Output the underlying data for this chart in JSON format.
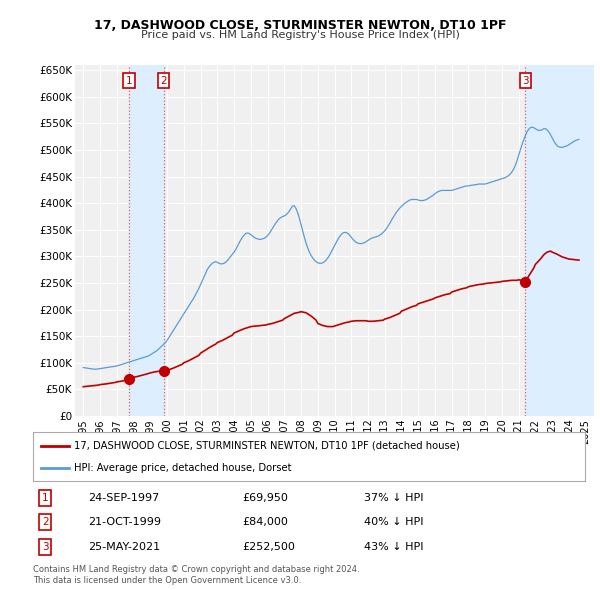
{
  "title": "17, DASHWOOD CLOSE, STURMINSTER NEWTON, DT10 1PF",
  "subtitle": "Price paid vs. HM Land Registry's House Price Index (HPI)",
  "legend_line1": "17, DASHWOOD CLOSE, STURMINSTER NEWTON, DT10 1PF (detached house)",
  "legend_line2": "HPI: Average price, detached house, Dorset",
  "footer1": "Contains HM Land Registry data © Crown copyright and database right 2024.",
  "footer2": "This data is licensed under the Open Government Licence v3.0.",
  "sales": [
    {
      "num": 1,
      "date": "24-SEP-1997",
      "price": 69950,
      "x": 1997.73,
      "pct": "37% ↓ HPI"
    },
    {
      "num": 2,
      "date": "21-OCT-1999",
      "price": 84000,
      "x": 1999.8,
      "pct": "40% ↓ HPI"
    },
    {
      "num": 3,
      "date": "25-MAY-2021",
      "price": 252500,
      "x": 2021.4,
      "pct": "43% ↓ HPI"
    }
  ],
  "hpi_color": "#5b9bd5",
  "price_color": "#c00000",
  "sale_dot_color": "#c00000",
  "vline_color": "#e06060",
  "shade_color": "#ddeeff",
  "background_color": "#ffffff",
  "plot_bg": "#f0f0f0",
  "ylim": [
    0,
    660000
  ],
  "xlim": [
    1994.5,
    2025.5
  ],
  "yticks": [
    0,
    50000,
    100000,
    150000,
    200000,
    250000,
    300000,
    350000,
    400000,
    450000,
    500000,
    550000,
    600000,
    650000
  ],
  "ytick_labels": [
    "£0",
    "£50K",
    "£100K",
    "£150K",
    "£200K",
    "£250K",
    "£300K",
    "£350K",
    "£400K",
    "£450K",
    "£500K",
    "£550K",
    "£600K",
    "£650K"
  ],
  "xticks": [
    1995,
    1996,
    1997,
    1998,
    1999,
    2000,
    2001,
    2002,
    2003,
    2004,
    2005,
    2006,
    2007,
    2008,
    2009,
    2010,
    2011,
    2012,
    2013,
    2014,
    2015,
    2016,
    2017,
    2018,
    2019,
    2020,
    2021,
    2022,
    2023,
    2024,
    2025
  ],
  "hpi_data": [
    [
      1995.0,
      91000
    ],
    [
      1995.1,
      90500
    ],
    [
      1995.2,
      90000
    ],
    [
      1995.3,
      89500
    ],
    [
      1995.4,
      89000
    ],
    [
      1995.5,
      88500
    ],
    [
      1995.6,
      88000
    ],
    [
      1995.7,
      88000
    ],
    [
      1995.8,
      88000
    ],
    [
      1995.9,
      88500
    ],
    [
      1996.0,
      89000
    ],
    [
      1996.1,
      89500
    ],
    [
      1996.2,
      90000
    ],
    [
      1996.3,
      90500
    ],
    [
      1996.4,
      91000
    ],
    [
      1996.5,
      91500
    ],
    [
      1996.6,
      92000
    ],
    [
      1996.7,
      92500
    ],
    [
      1996.8,
      93000
    ],
    [
      1996.9,
      93500
    ],
    [
      1997.0,
      94000
    ],
    [
      1997.1,
      95000
    ],
    [
      1997.2,
      96000
    ],
    [
      1997.3,
      97000
    ],
    [
      1997.4,
      98000
    ],
    [
      1997.5,
      99000
    ],
    [
      1997.6,
      100000
    ],
    [
      1997.7,
      101000
    ],
    [
      1997.8,
      102000
    ],
    [
      1997.9,
      103000
    ],
    [
      1998.0,
      104000
    ],
    [
      1998.1,
      105000
    ],
    [
      1998.2,
      106000
    ],
    [
      1998.3,
      107000
    ],
    [
      1998.4,
      108000
    ],
    [
      1998.5,
      109000
    ],
    [
      1998.6,
      110000
    ],
    [
      1998.7,
      111000
    ],
    [
      1998.8,
      112000
    ],
    [
      1998.9,
      113000
    ],
    [
      1999.0,
      115000
    ],
    [
      1999.1,
      117000
    ],
    [
      1999.2,
      119000
    ],
    [
      1999.3,
      121000
    ],
    [
      1999.4,
      123000
    ],
    [
      1999.5,
      126000
    ],
    [
      1999.6,
      129000
    ],
    [
      1999.7,
      132000
    ],
    [
      1999.8,
      135000
    ],
    [
      1999.9,
      138000
    ],
    [
      2000.0,
      142000
    ],
    [
      2000.1,
      147000
    ],
    [
      2000.2,
      152000
    ],
    [
      2000.3,
      157000
    ],
    [
      2000.4,
      162000
    ],
    [
      2000.5,
      167000
    ],
    [
      2000.6,
      172000
    ],
    [
      2000.7,
      177000
    ],
    [
      2000.8,
      182000
    ],
    [
      2000.9,
      187000
    ],
    [
      2001.0,
      192000
    ],
    [
      2001.1,
      197000
    ],
    [
      2001.2,
      202000
    ],
    [
      2001.3,
      207000
    ],
    [
      2001.4,
      212000
    ],
    [
      2001.5,
      217000
    ],
    [
      2001.6,
      222000
    ],
    [
      2001.7,
      228000
    ],
    [
      2001.8,
      234000
    ],
    [
      2001.9,
      240000
    ],
    [
      2002.0,
      247000
    ],
    [
      2002.1,
      254000
    ],
    [
      2002.2,
      261000
    ],
    [
      2002.3,
      268000
    ],
    [
      2002.4,
      275000
    ],
    [
      2002.5,
      280000
    ],
    [
      2002.6,
      284000
    ],
    [
      2002.7,
      287000
    ],
    [
      2002.8,
      289000
    ],
    [
      2002.9,
      290000
    ],
    [
      2003.0,
      289000
    ],
    [
      2003.1,
      287000
    ],
    [
      2003.2,
      286000
    ],
    [
      2003.3,
      286000
    ],
    [
      2003.4,
      287000
    ],
    [
      2003.5,
      289000
    ],
    [
      2003.6,
      292000
    ],
    [
      2003.7,
      296000
    ],
    [
      2003.8,
      300000
    ],
    [
      2003.9,
      304000
    ],
    [
      2004.0,
      308000
    ],
    [
      2004.1,
      313000
    ],
    [
      2004.2,
      319000
    ],
    [
      2004.3,
      325000
    ],
    [
      2004.4,
      331000
    ],
    [
      2004.5,
      336000
    ],
    [
      2004.6,
      340000
    ],
    [
      2004.7,
      343000
    ],
    [
      2004.8,
      344000
    ],
    [
      2004.9,
      343000
    ],
    [
      2005.0,
      341000
    ],
    [
      2005.1,
      338000
    ],
    [
      2005.2,
      336000
    ],
    [
      2005.3,
      334000
    ],
    [
      2005.4,
      333000
    ],
    [
      2005.5,
      332000
    ],
    [
      2005.6,
      332000
    ],
    [
      2005.7,
      333000
    ],
    [
      2005.8,
      334000
    ],
    [
      2005.9,
      336000
    ],
    [
      2006.0,
      339000
    ],
    [
      2006.1,
      343000
    ],
    [
      2006.2,
      348000
    ],
    [
      2006.3,
      353000
    ],
    [
      2006.4,
      358000
    ],
    [
      2006.5,
      363000
    ],
    [
      2006.6,
      367000
    ],
    [
      2006.7,
      371000
    ],
    [
      2006.8,
      373000
    ],
    [
      2006.9,
      375000
    ],
    [
      2007.0,
      376000
    ],
    [
      2007.1,
      378000
    ],
    [
      2007.2,
      381000
    ],
    [
      2007.3,
      385000
    ],
    [
      2007.4,
      390000
    ],
    [
      2007.5,
      395000
    ],
    [
      2007.6,
      395000
    ],
    [
      2007.7,
      390000
    ],
    [
      2007.8,
      382000
    ],
    [
      2007.9,
      372000
    ],
    [
      2008.0,
      360000
    ],
    [
      2008.1,
      348000
    ],
    [
      2008.2,
      336000
    ],
    [
      2008.3,
      325000
    ],
    [
      2008.4,
      316000
    ],
    [
      2008.5,
      308000
    ],
    [
      2008.6,
      302000
    ],
    [
      2008.7,
      297000
    ],
    [
      2008.8,
      293000
    ],
    [
      2008.9,
      290000
    ],
    [
      2009.0,
      288000
    ],
    [
      2009.1,
      287000
    ],
    [
      2009.2,
      287000
    ],
    [
      2009.3,
      288000
    ],
    [
      2009.4,
      290000
    ],
    [
      2009.5,
      293000
    ],
    [
      2009.6,
      297000
    ],
    [
      2009.7,
      302000
    ],
    [
      2009.8,
      308000
    ],
    [
      2009.9,
      314000
    ],
    [
      2010.0,
      320000
    ],
    [
      2010.1,
      326000
    ],
    [
      2010.2,
      332000
    ],
    [
      2010.3,
      337000
    ],
    [
      2010.4,
      341000
    ],
    [
      2010.5,
      344000
    ],
    [
      2010.6,
      345000
    ],
    [
      2010.7,
      345000
    ],
    [
      2010.8,
      343000
    ],
    [
      2010.9,
      340000
    ],
    [
      2011.0,
      336000
    ],
    [
      2011.1,
      332000
    ],
    [
      2011.2,
      329000
    ],
    [
      2011.3,
      326000
    ],
    [
      2011.4,
      325000
    ],
    [
      2011.5,
      324000
    ],
    [
      2011.6,
      324000
    ],
    [
      2011.7,
      325000
    ],
    [
      2011.8,
      326000
    ],
    [
      2011.9,
      328000
    ],
    [
      2012.0,
      330000
    ],
    [
      2012.1,
      332000
    ],
    [
      2012.2,
      334000
    ],
    [
      2012.3,
      335000
    ],
    [
      2012.4,
      336000
    ],
    [
      2012.5,
      337000
    ],
    [
      2012.6,
      338000
    ],
    [
      2012.7,
      340000
    ],
    [
      2012.8,
      342000
    ],
    [
      2012.9,
      345000
    ],
    [
      2013.0,
      348000
    ],
    [
      2013.1,
      352000
    ],
    [
      2013.2,
      357000
    ],
    [
      2013.3,
      362000
    ],
    [
      2013.4,
      368000
    ],
    [
      2013.5,
      373000
    ],
    [
      2013.6,
      378000
    ],
    [
      2013.7,
      383000
    ],
    [
      2013.8,
      387000
    ],
    [
      2013.9,
      391000
    ],
    [
      2014.0,
      394000
    ],
    [
      2014.1,
      397000
    ],
    [
      2014.2,
      400000
    ],
    [
      2014.3,
      402000
    ],
    [
      2014.4,
      404000
    ],
    [
      2014.5,
      406000
    ],
    [
      2014.6,
      407000
    ],
    [
      2014.7,
      407000
    ],
    [
      2014.8,
      407000
    ],
    [
      2014.9,
      407000
    ],
    [
      2015.0,
      406000
    ],
    [
      2015.1,
      405000
    ],
    [
      2015.2,
      405000
    ],
    [
      2015.3,
      405000
    ],
    [
      2015.4,
      406000
    ],
    [
      2015.5,
      407000
    ],
    [
      2015.6,
      409000
    ],
    [
      2015.7,
      411000
    ],
    [
      2015.8,
      413000
    ],
    [
      2015.9,
      415000
    ],
    [
      2016.0,
      418000
    ],
    [
      2016.1,
      420000
    ],
    [
      2016.2,
      422000
    ],
    [
      2016.3,
      423000
    ],
    [
      2016.4,
      424000
    ],
    [
      2016.5,
      424000
    ],
    [
      2016.6,
      424000
    ],
    [
      2016.7,
      424000
    ],
    [
      2016.8,
      424000
    ],
    [
      2016.9,
      424000
    ],
    [
      2017.0,
      424000
    ],
    [
      2017.1,
      425000
    ],
    [
      2017.2,
      426000
    ],
    [
      2017.3,
      427000
    ],
    [
      2017.4,
      428000
    ],
    [
      2017.5,
      429000
    ],
    [
      2017.6,
      430000
    ],
    [
      2017.7,
      431000
    ],
    [
      2017.8,
      432000
    ],
    [
      2017.9,
      432000
    ],
    [
      2018.0,
      433000
    ],
    [
      2018.1,
      433000
    ],
    [
      2018.2,
      434000
    ],
    [
      2018.3,
      434000
    ],
    [
      2018.4,
      435000
    ],
    [
      2018.5,
      435000
    ],
    [
      2018.6,
      436000
    ],
    [
      2018.7,
      436000
    ],
    [
      2018.8,
      436000
    ],
    [
      2018.9,
      436000
    ],
    [
      2019.0,
      436000
    ],
    [
      2019.1,
      437000
    ],
    [
      2019.2,
      438000
    ],
    [
      2019.3,
      439000
    ],
    [
      2019.4,
      440000
    ],
    [
      2019.5,
      441000
    ],
    [
      2019.6,
      442000
    ],
    [
      2019.7,
      443000
    ],
    [
      2019.8,
      444000
    ],
    [
      2019.9,
      445000
    ],
    [
      2020.0,
      446000
    ],
    [
      2020.1,
      447000
    ],
    [
      2020.2,
      448000
    ],
    [
      2020.3,
      450000
    ],
    [
      2020.4,
      452000
    ],
    [
      2020.5,
      455000
    ],
    [
      2020.6,
      459000
    ],
    [
      2020.7,
      464000
    ],
    [
      2020.8,
      471000
    ],
    [
      2020.9,
      480000
    ],
    [
      2021.0,
      490000
    ],
    [
      2021.1,
      500000
    ],
    [
      2021.2,
      510000
    ],
    [
      2021.3,
      519000
    ],
    [
      2021.4,
      527000
    ],
    [
      2021.5,
      534000
    ],
    [
      2021.6,
      539000
    ],
    [
      2021.7,
      542000
    ],
    [
      2021.8,
      543000
    ],
    [
      2021.9,
      542000
    ],
    [
      2022.0,
      540000
    ],
    [
      2022.1,
      538000
    ],
    [
      2022.2,
      537000
    ],
    [
      2022.3,
      537000
    ],
    [
      2022.4,
      538000
    ],
    [
      2022.5,
      540000
    ],
    [
      2022.6,
      540000
    ],
    [
      2022.7,
      538000
    ],
    [
      2022.8,
      534000
    ],
    [
      2022.9,
      529000
    ],
    [
      2023.0,
      523000
    ],
    [
      2023.1,
      517000
    ],
    [
      2023.2,
      512000
    ],
    [
      2023.3,
      508000
    ],
    [
      2023.4,
      506000
    ],
    [
      2023.5,
      505000
    ],
    [
      2023.6,
      505000
    ],
    [
      2023.7,
      506000
    ],
    [
      2023.8,
      507000
    ],
    [
      2023.9,
      508000
    ],
    [
      2024.0,
      510000
    ],
    [
      2024.1,
      512000
    ],
    [
      2024.2,
      514000
    ],
    [
      2024.3,
      516000
    ],
    [
      2024.4,
      518000
    ],
    [
      2024.5,
      519000
    ],
    [
      2024.6,
      520000
    ]
  ],
  "price_data": [
    [
      1995.0,
      55000
    ],
    [
      1995.3,
      56000
    ],
    [
      1995.6,
      57000
    ],
    [
      1995.9,
      58000
    ],
    [
      1996.0,
      59000
    ],
    [
      1996.3,
      60000
    ],
    [
      1996.6,
      61500
    ],
    [
      1996.9,
      63000
    ],
    [
      1997.0,
      64000
    ],
    [
      1997.3,
      65500
    ],
    [
      1997.5,
      67000
    ],
    [
      1997.73,
      69950
    ],
    [
      1997.9,
      72000
    ],
    [
      1998.2,
      74000
    ],
    [
      1998.5,
      76500
    ],
    [
      1998.8,
      79000
    ],
    [
      1999.0,
      81000
    ],
    [
      1999.3,
      83000
    ],
    [
      1999.6,
      84500
    ],
    [
      1999.8,
      84000
    ],
    [
      2000.0,
      86000
    ],
    [
      2000.3,
      89000
    ],
    [
      2000.6,
      93000
    ],
    [
      2000.9,
      97000
    ],
    [
      2001.0,
      100000
    ],
    [
      2001.3,
      104000
    ],
    [
      2001.6,
      109000
    ],
    [
      2001.9,
      114000
    ],
    [
      2002.0,
      118000
    ],
    [
      2002.3,
      124000
    ],
    [
      2002.6,
      130000
    ],
    [
      2002.9,
      135000
    ],
    [
      2003.0,
      138000
    ],
    [
      2003.3,
      142000
    ],
    [
      2003.6,
      147000
    ],
    [
      2003.9,
      152000
    ],
    [
      2004.0,
      156000
    ],
    [
      2004.3,
      160000
    ],
    [
      2004.6,
      164000
    ],
    [
      2004.9,
      167000
    ],
    [
      2005.0,
      168000
    ],
    [
      2005.3,
      169000
    ],
    [
      2005.6,
      170000
    ],
    [
      2005.9,
      171000
    ],
    [
      2006.0,
      172000
    ],
    [
      2006.3,
      174000
    ],
    [
      2006.6,
      177000
    ],
    [
      2006.9,
      180000
    ],
    [
      2007.0,
      183000
    ],
    [
      2007.3,
      188000
    ],
    [
      2007.6,
      193000
    ],
    [
      2007.9,
      195000
    ],
    [
      2008.0,
      196000
    ],
    [
      2008.3,
      194000
    ],
    [
      2008.6,
      188000
    ],
    [
      2008.9,
      180000
    ],
    [
      2009.0,
      174000
    ],
    [
      2009.3,
      170000
    ],
    [
      2009.6,
      168000
    ],
    [
      2009.9,
      168000
    ],
    [
      2010.0,
      169000
    ],
    [
      2010.3,
      172000
    ],
    [
      2010.6,
      175000
    ],
    [
      2010.9,
      177000
    ],
    [
      2011.0,
      178000
    ],
    [
      2011.3,
      179000
    ],
    [
      2011.6,
      179000
    ],
    [
      2011.9,
      179000
    ],
    [
      2012.0,
      178000
    ],
    [
      2012.3,
      178000
    ],
    [
      2012.6,
      179000
    ],
    [
      2012.9,
      180000
    ],
    [
      2013.0,
      182000
    ],
    [
      2013.3,
      185000
    ],
    [
      2013.6,
      189000
    ],
    [
      2013.9,
      193000
    ],
    [
      2014.0,
      197000
    ],
    [
      2014.3,
      201000
    ],
    [
      2014.6,
      205000
    ],
    [
      2014.9,
      208000
    ],
    [
      2015.0,
      211000
    ],
    [
      2015.3,
      214000
    ],
    [
      2015.6,
      217000
    ],
    [
      2015.9,
      220000
    ],
    [
      2016.0,
      222000
    ],
    [
      2016.3,
      225000
    ],
    [
      2016.6,
      228000
    ],
    [
      2016.9,
      230000
    ],
    [
      2017.0,
      233000
    ],
    [
      2017.3,
      236000
    ],
    [
      2017.6,
      239000
    ],
    [
      2017.9,
      241000
    ],
    [
      2018.0,
      243000
    ],
    [
      2018.3,
      245000
    ],
    [
      2018.6,
      247000
    ],
    [
      2018.9,
      248000
    ],
    [
      2019.0,
      249000
    ],
    [
      2019.3,
      250000
    ],
    [
      2019.6,
      251000
    ],
    [
      2019.9,
      252000
    ],
    [
      2020.0,
      253000
    ],
    [
      2020.3,
      254000
    ],
    [
      2020.6,
      255000
    ],
    [
      2020.9,
      255000
    ],
    [
      2021.0,
      256000
    ],
    [
      2021.3,
      254000
    ],
    [
      2021.4,
      252500
    ],
    [
      2021.5,
      258000
    ],
    [
      2021.7,
      268000
    ],
    [
      2021.9,
      278000
    ],
    [
      2022.0,
      285000
    ],
    [
      2022.3,
      295000
    ],
    [
      2022.5,
      303000
    ],
    [
      2022.7,
      308000
    ],
    [
      2022.9,
      310000
    ],
    [
      2023.0,
      308000
    ],
    [
      2023.3,
      304000
    ],
    [
      2023.6,
      299000
    ],
    [
      2023.9,
      296000
    ],
    [
      2024.0,
      295000
    ],
    [
      2024.3,
      294000
    ],
    [
      2024.6,
      293000
    ]
  ]
}
